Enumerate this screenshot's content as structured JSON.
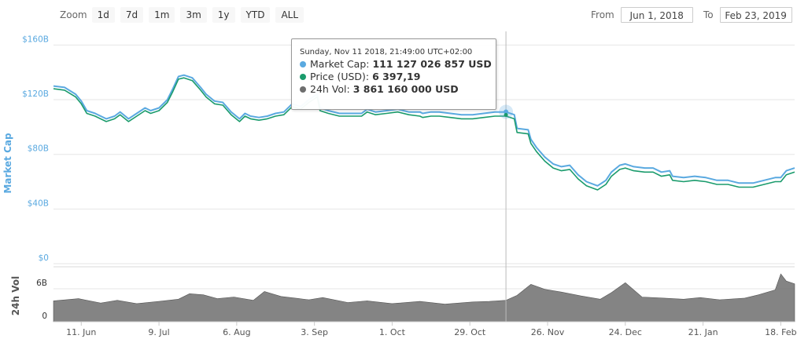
{
  "zoom": {
    "label": "Zoom",
    "buttons": [
      "1d",
      "7d",
      "1m",
      "3m",
      "1y",
      "YTD",
      "ALL"
    ]
  },
  "range": {
    "from_label": "From",
    "from_value": "Jun 1, 2018",
    "to_label": "To",
    "to_value": "Feb 23, 2019"
  },
  "tooltip": {
    "date": "Sunday, Nov 11 2018, 21:49:00 UTC+02:00",
    "rows": [
      {
        "label": "Market Cap:",
        "value": "111 127 026 857 USD",
        "color": "#5aa9e0"
      },
      {
        "label": "Price (USD):",
        "value": "6 397,19",
        "color": "#1a9b6c"
      },
      {
        "label": "24h Vol:",
        "value": "3 861 160 000 USD",
        "color": "#6e6e6e"
      }
    ]
  },
  "colors": {
    "market_cap": "#5aa9e0",
    "price": "#1a9b6c",
    "volume": "#6e6e6e",
    "axis_label": "#5aa9e0",
    "grid": "#e6e6e6"
  },
  "chart_data": {
    "type": "line",
    "title": "",
    "x_range": [
      "2018-06-01",
      "2019-02-23"
    ],
    "x_ticks": [
      {
        "label": "11. Jun",
        "date": "2018-06-11"
      },
      {
        "label": "9. Jul",
        "date": "2018-07-09"
      },
      {
        "label": "6. Aug",
        "date": "2018-08-06"
      },
      {
        "label": "3. Sep",
        "date": "2018-09-03"
      },
      {
        "label": "1. Oct",
        "date": "2018-10-01"
      },
      {
        "label": "29. Oct",
        "date": "2018-10-29"
      },
      {
        "label": "26. Nov",
        "date": "2018-11-26"
      },
      {
        "label": "24. Dec",
        "date": "2018-12-24"
      },
      {
        "label": "21. Jan",
        "date": "2019-01-21"
      },
      {
        "label": "18. Feb",
        "date": "2019-02-18"
      }
    ],
    "upper_panel": {
      "ylabel": "Market Cap",
      "unit": "USD billions",
      "ylim": [
        0,
        170
      ],
      "y_ticks": [
        {
          "label": "$0",
          "value": 0
        },
        {
          "label": "$40B",
          "value": 40
        },
        {
          "label": "$80B",
          "value": 80
        },
        {
          "label": "$120B",
          "value": 120
        },
        {
          "label": "$160B",
          "value": 160
        }
      ],
      "grid": true
    },
    "lower_panel": {
      "ylabel": "24h Vol",
      "unit": "USD billions",
      "ylim": [
        0,
        10
      ],
      "y_ticks": [
        {
          "label": "0",
          "value": 0
        },
        {
          "label": "6B",
          "value": 6
        }
      ],
      "grid": true
    },
    "series": [
      {
        "name": "Market Cap",
        "type": "line",
        "x": [
          "2018-06-01",
          "2018-06-05",
          "2018-06-09",
          "2018-06-11",
          "2018-06-13",
          "2018-06-16",
          "2018-06-20",
          "2018-06-23",
          "2018-06-25",
          "2018-06-28",
          "2018-07-01",
          "2018-07-04",
          "2018-07-06",
          "2018-07-09",
          "2018-07-12",
          "2018-07-14",
          "2018-07-16",
          "2018-07-18",
          "2018-07-21",
          "2018-07-24",
          "2018-07-26",
          "2018-07-29",
          "2018-08-01",
          "2018-08-04",
          "2018-08-07",
          "2018-08-09",
          "2018-08-11",
          "2018-08-14",
          "2018-08-17",
          "2018-08-20",
          "2018-08-23",
          "2018-08-26",
          "2018-08-29",
          "2018-09-01",
          "2018-09-04",
          "2018-09-05",
          "2018-09-08",
          "2018-09-12",
          "2018-09-16",
          "2018-09-20",
          "2018-09-22",
          "2018-09-25",
          "2018-09-29",
          "2018-10-03",
          "2018-10-07",
          "2018-10-11",
          "2018-10-12",
          "2018-10-15",
          "2018-10-18",
          "2018-10-22",
          "2018-10-26",
          "2018-10-30",
          "2018-11-03",
          "2018-11-07",
          "2018-11-11",
          "2018-11-14",
          "2018-11-15",
          "2018-11-19",
          "2018-11-20",
          "2018-11-22",
          "2018-11-25",
          "2018-11-28",
          "2018-12-01",
          "2018-12-04",
          "2018-12-07",
          "2018-12-10",
          "2018-12-14",
          "2018-12-17",
          "2018-12-19",
          "2018-12-22",
          "2018-12-24",
          "2018-12-27",
          "2018-12-31",
          "2019-01-03",
          "2019-01-06",
          "2019-01-09",
          "2019-01-10",
          "2019-01-14",
          "2019-01-18",
          "2019-01-22",
          "2019-01-26",
          "2019-01-30",
          "2019-02-03",
          "2019-02-08",
          "2019-02-12",
          "2019-02-16",
          "2019-02-18",
          "2019-02-20",
          "2019-02-23"
        ],
        "y": [
          130,
          129,
          124,
          119,
          112,
          110,
          106,
          108,
          111,
          106,
          110,
          114,
          112,
          114,
          120,
          128,
          137,
          138,
          136,
          129,
          124,
          119,
          118,
          111,
          106,
          110,
          108,
          107,
          108,
          110,
          111,
          117,
          115,
          120,
          124,
          114,
          112,
          110,
          110,
          110,
          113,
          111,
          112,
          113,
          111,
          111,
          110,
          111,
          111,
          110,
          109,
          109,
          110,
          111,
          111,
          109,
          99,
          98,
          91,
          85,
          78,
          73,
          71,
          72,
          65,
          60,
          57,
          61,
          67,
          72,
          73,
          71,
          70,
          70,
          67,
          68,
          64,
          63,
          64,
          63,
          61,
          61,
          59,
          59,
          61,
          63,
          63,
          68,
          70
        ]
      },
      {
        "name": "Price (USD)",
        "type": "line",
        "x": [
          "2018-06-01",
          "2018-06-05",
          "2018-06-09",
          "2018-06-11",
          "2018-06-13",
          "2018-06-16",
          "2018-06-20",
          "2018-06-23",
          "2018-06-25",
          "2018-06-28",
          "2018-07-01",
          "2018-07-04",
          "2018-07-06",
          "2018-07-09",
          "2018-07-12",
          "2018-07-14",
          "2018-07-16",
          "2018-07-18",
          "2018-07-21",
          "2018-07-24",
          "2018-07-26",
          "2018-07-29",
          "2018-08-01",
          "2018-08-04",
          "2018-08-07",
          "2018-08-09",
          "2018-08-11",
          "2018-08-14",
          "2018-08-17",
          "2018-08-20",
          "2018-08-23",
          "2018-08-26",
          "2018-08-29",
          "2018-09-01",
          "2018-09-04",
          "2018-09-05",
          "2018-09-08",
          "2018-09-12",
          "2018-09-16",
          "2018-09-20",
          "2018-09-22",
          "2018-09-25",
          "2018-09-29",
          "2018-10-03",
          "2018-10-07",
          "2018-10-11",
          "2018-10-12",
          "2018-10-15",
          "2018-10-18",
          "2018-10-22",
          "2018-10-26",
          "2018-10-30",
          "2018-11-03",
          "2018-11-07",
          "2018-11-11",
          "2018-11-14",
          "2018-11-15",
          "2018-11-19",
          "2018-11-20",
          "2018-11-22",
          "2018-11-25",
          "2018-11-28",
          "2018-12-01",
          "2018-12-04",
          "2018-12-07",
          "2018-12-10",
          "2018-12-14",
          "2018-12-17",
          "2018-12-19",
          "2018-12-22",
          "2018-12-24",
          "2018-12-27",
          "2018-12-31",
          "2019-01-03",
          "2019-01-06",
          "2019-01-09",
          "2019-01-10",
          "2019-01-14",
          "2019-01-18",
          "2019-01-22",
          "2019-01-26",
          "2019-01-30",
          "2019-02-03",
          "2019-02-08",
          "2019-02-12",
          "2019-02-16",
          "2019-02-18",
          "2019-02-20",
          "2019-02-23"
        ],
        "y": [
          128,
          127,
          122,
          117,
          110,
          108,
          104,
          106,
          109,
          104,
          108,
          112,
          110,
          112,
          118,
          126,
          135,
          136,
          134,
          127,
          122,
          117,
          116,
          109,
          104,
          108,
          106,
          105,
          106,
          108,
          109,
          115,
          113,
          118,
          122,
          112,
          110,
          108,
          108,
          108,
          111,
          109,
          110,
          111,
          109,
          108,
          107,
          108,
          108,
          107,
          106,
          106,
          107,
          108,
          108,
          106,
          96,
          95,
          88,
          82,
          75,
          70,
          68,
          69,
          62,
          57,
          54,
          58,
          64,
          69,
          70,
          68,
          67,
          67,
          64,
          65,
          61,
          60,
          61,
          60,
          58,
          58,
          56,
          56,
          58,
          60,
          60,
          65,
          67
        ]
      },
      {
        "name": "24h Vol",
        "type": "area",
        "x": [
          "2018-06-01",
          "2018-06-10",
          "2018-06-18",
          "2018-06-24",
          "2018-07-01",
          "2018-07-09",
          "2018-07-16",
          "2018-07-20",
          "2018-07-25",
          "2018-07-30",
          "2018-08-05",
          "2018-08-12",
          "2018-08-16",
          "2018-08-22",
          "2018-09-01",
          "2018-09-06",
          "2018-09-15",
          "2018-09-22",
          "2018-10-01",
          "2018-10-11",
          "2018-10-20",
          "2018-10-30",
          "2018-11-05",
          "2018-11-11",
          "2018-11-15",
          "2018-11-20",
          "2018-11-25",
          "2018-12-01",
          "2018-12-08",
          "2018-12-15",
          "2018-12-19",
          "2018-12-24",
          "2018-12-30",
          "2019-01-07",
          "2019-01-14",
          "2019-01-20",
          "2019-01-27",
          "2019-02-05",
          "2019-02-10",
          "2019-02-16",
          "2019-02-18",
          "2019-02-20",
          "2019-02-23"
        ],
        "y": [
          3.8,
          4.2,
          3.4,
          3.9,
          3.3,
          3.7,
          4.1,
          5.1,
          4.9,
          4.2,
          4.5,
          3.9,
          5.5,
          4.6,
          4.0,
          4.4,
          3.5,
          3.8,
          3.3,
          3.7,
          3.2,
          3.6,
          3.7,
          3.9,
          4.8,
          6.8,
          5.9,
          5.4,
          4.7,
          4.1,
          5.3,
          7.1,
          4.5,
          4.3,
          4.1,
          4.4,
          4.0,
          4.3,
          4.9,
          5.8,
          8.7,
          7.4,
          6.9
        ]
      }
    ],
    "tooltip_point": {
      "x": "2018-11-11",
      "market_cap": 111.127,
      "price": 6397.19,
      "volume": 3.86116
    }
  }
}
